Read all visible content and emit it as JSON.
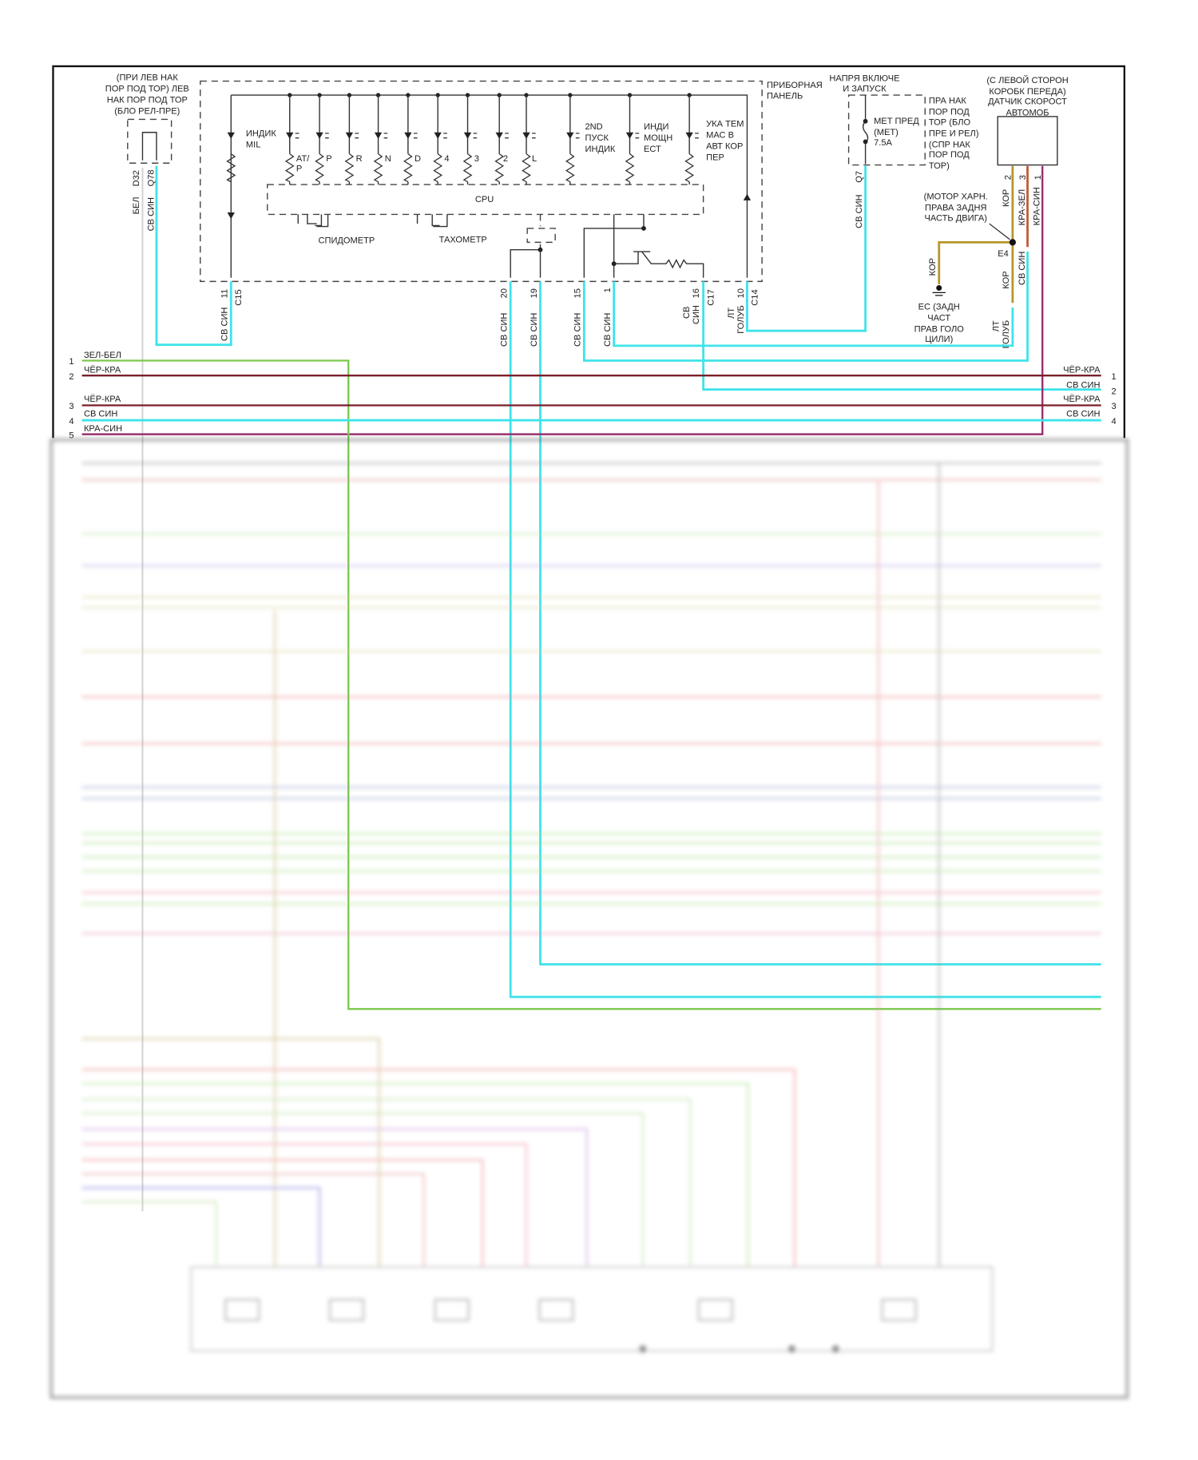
{
  "colors": {
    "svsin": "#3fe3ea",
    "cherkra": "#7a1f2a",
    "krasin": "#9a2a6c",
    "zelbel": "#7ac84a",
    "kor": "#b8962a",
    "bel": "#cfcfcf"
  },
  "left_relay": {
    "label_lines": [
      "(ПРИ ЛЕВ НАК",
      "ПОР ПОД ТОР) ЛЕВ",
      "НАК ПОР ПОД ТОР",
      "(БЛО РЕЛ-ПРЕ)"
    ],
    "pin_d32": "D32",
    "pin_q78": "Q78",
    "wire_bel": "БЕЛ",
    "wire_svsin": "СВ СИН"
  },
  "instrument_panel": {
    "title_lines": [
      "ПРИБОРНАЯ",
      "ПАНЕЛЬ"
    ],
    "mil_label": [
      "ИНДИК",
      "MIL"
    ],
    "gear_labels": [
      "AT/",
      "P",
      "P",
      "R",
      "N",
      "D",
      "4",
      "3",
      "2",
      "L"
    ],
    "second_start": [
      "2ND",
      "ПУСК",
      "ИНДИК"
    ],
    "power_ind": [
      "ИНДИ",
      "МОЩН",
      "ЕСТ"
    ],
    "temp_ind": [
      "УКА ТЕМ",
      "МАС В",
      "АВТ КОР",
      "ПЕР"
    ],
    "cpu": "CPU",
    "speedometer": "СПИДОМЕТР",
    "tachometer": "ТАХОМЕТР"
  },
  "connectors": [
    {
      "pin": "11",
      "conn": "C15",
      "wire": "СВ СИН"
    },
    {
      "pin": "20",
      "wire": "СВ СИН"
    },
    {
      "pin": "19",
      "wire": "СВ СИН"
    },
    {
      "pin": "15",
      "wire": "СВ СИН"
    },
    {
      "pin": "1",
      "wire": "СВ СИН"
    },
    {
      "pin": "16",
      "conn": "C17",
      "wire1": "СВ",
      "wire2": "СИН"
    },
    {
      "pin": "10",
      "conn": "C14",
      "wire1": "ЛТ",
      "wire2": "ГОЛУБ"
    }
  ],
  "fuse_block": {
    "title_lines": [
      "НАПРЯ ВКЛЮЧЕ",
      "И ЗАПУСК"
    ],
    "fuse_lines": [
      "МЕТ ПРЕД",
      "(МЕТ)",
      "7.5A"
    ],
    "location_lines": [
      "ПРА НАК",
      "ПОР ПОД",
      "ТОР (БЛО",
      "ПРЕ И РЕЛ)",
      "(СПР НАК",
      "ПОР ПОД",
      "ТОР)"
    ],
    "pin": "Q7",
    "wire": "СВ СИН"
  },
  "speed_sensor": {
    "title_lines": [
      "(С ЛЕВОЙ СТОРОН",
      "КОРОБК ПЕРЕДА)",
      "ДАТЧИК СКОРОСТ",
      "АВТОМОБ"
    ],
    "pins": [
      "2",
      "3",
      "1"
    ],
    "wires": [
      "КОР",
      "КРА-ЗЕЛ",
      "КРА-СИН"
    ]
  },
  "ground": {
    "motor_label": [
      "(МОТОР ХАРН.",
      "ПРАВА ЗАДНЯ",
      "ЧАСТЬ ДВИГА)"
    ],
    "splice": "E4",
    "wire_kor": "КОР",
    "wire_kor2": "КОР",
    "wire_svsin": "СВ СИН",
    "wire_lt": "ЛТ",
    "wire_golub": "ГОЛУБ",
    "ground_lines": [
      "ЕС (ЗАДН",
      "ЧАСТ",
      "ПРАВ ГОЛО",
      "ЦИЛИ)"
    ]
  },
  "harness_left": [
    {
      "num": "1",
      "wire": "ЗЕЛ-БЕЛ"
    },
    {
      "num": "2",
      "wire": "ЧЁР-КРА"
    },
    {
      "num": "3",
      "wire": "ЧЁР-КРА"
    },
    {
      "num": "4",
      "wire": "СВ СИН"
    },
    {
      "num": "5",
      "wire": "КРА-СИН"
    }
  ],
  "harness_right": [
    {
      "num": "1",
      "wire": "ЧЁР-КРА"
    },
    {
      "num": "2",
      "wire": "СВ СИН"
    },
    {
      "num": "3",
      "wire": "ЧЁР-КРА"
    },
    {
      "num": "4",
      "wire": "СВ СИН"
    }
  ]
}
